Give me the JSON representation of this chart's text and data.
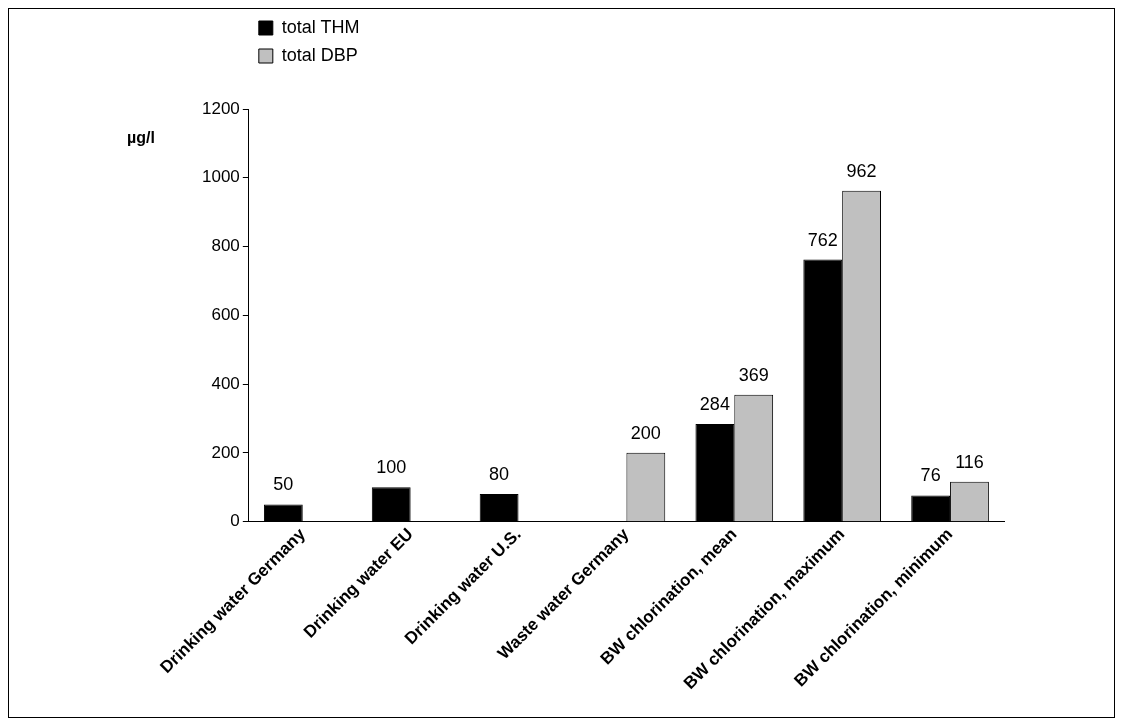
{
  "chart_data": {
    "type": "bar",
    "ylabel": "µg/l",
    "categories": [
      "Drinking water Germany",
      "Drinking water EU",
      "Drinking water U.S.",
      "Waste water Germany",
      "BW chlorination, mean",
      "BW chlorination, maximum",
      "BW chlorination, minimum"
    ],
    "series": [
      {
        "name": "total THM",
        "color": "#000000",
        "values": [
          50,
          100,
          80,
          null,
          284,
          762,
          76
        ]
      },
      {
        "name": "total DBP",
        "color": "#c0c0c0",
        "values": [
          null,
          null,
          null,
          200,
          369,
          962,
          116
        ]
      }
    ],
    "ylim": [
      0,
      1200
    ],
    "yticks": [
      0,
      200,
      400,
      600,
      800,
      1000,
      1200
    ],
    "grid": false,
    "legend": "top left",
    "data_labels": true
  }
}
